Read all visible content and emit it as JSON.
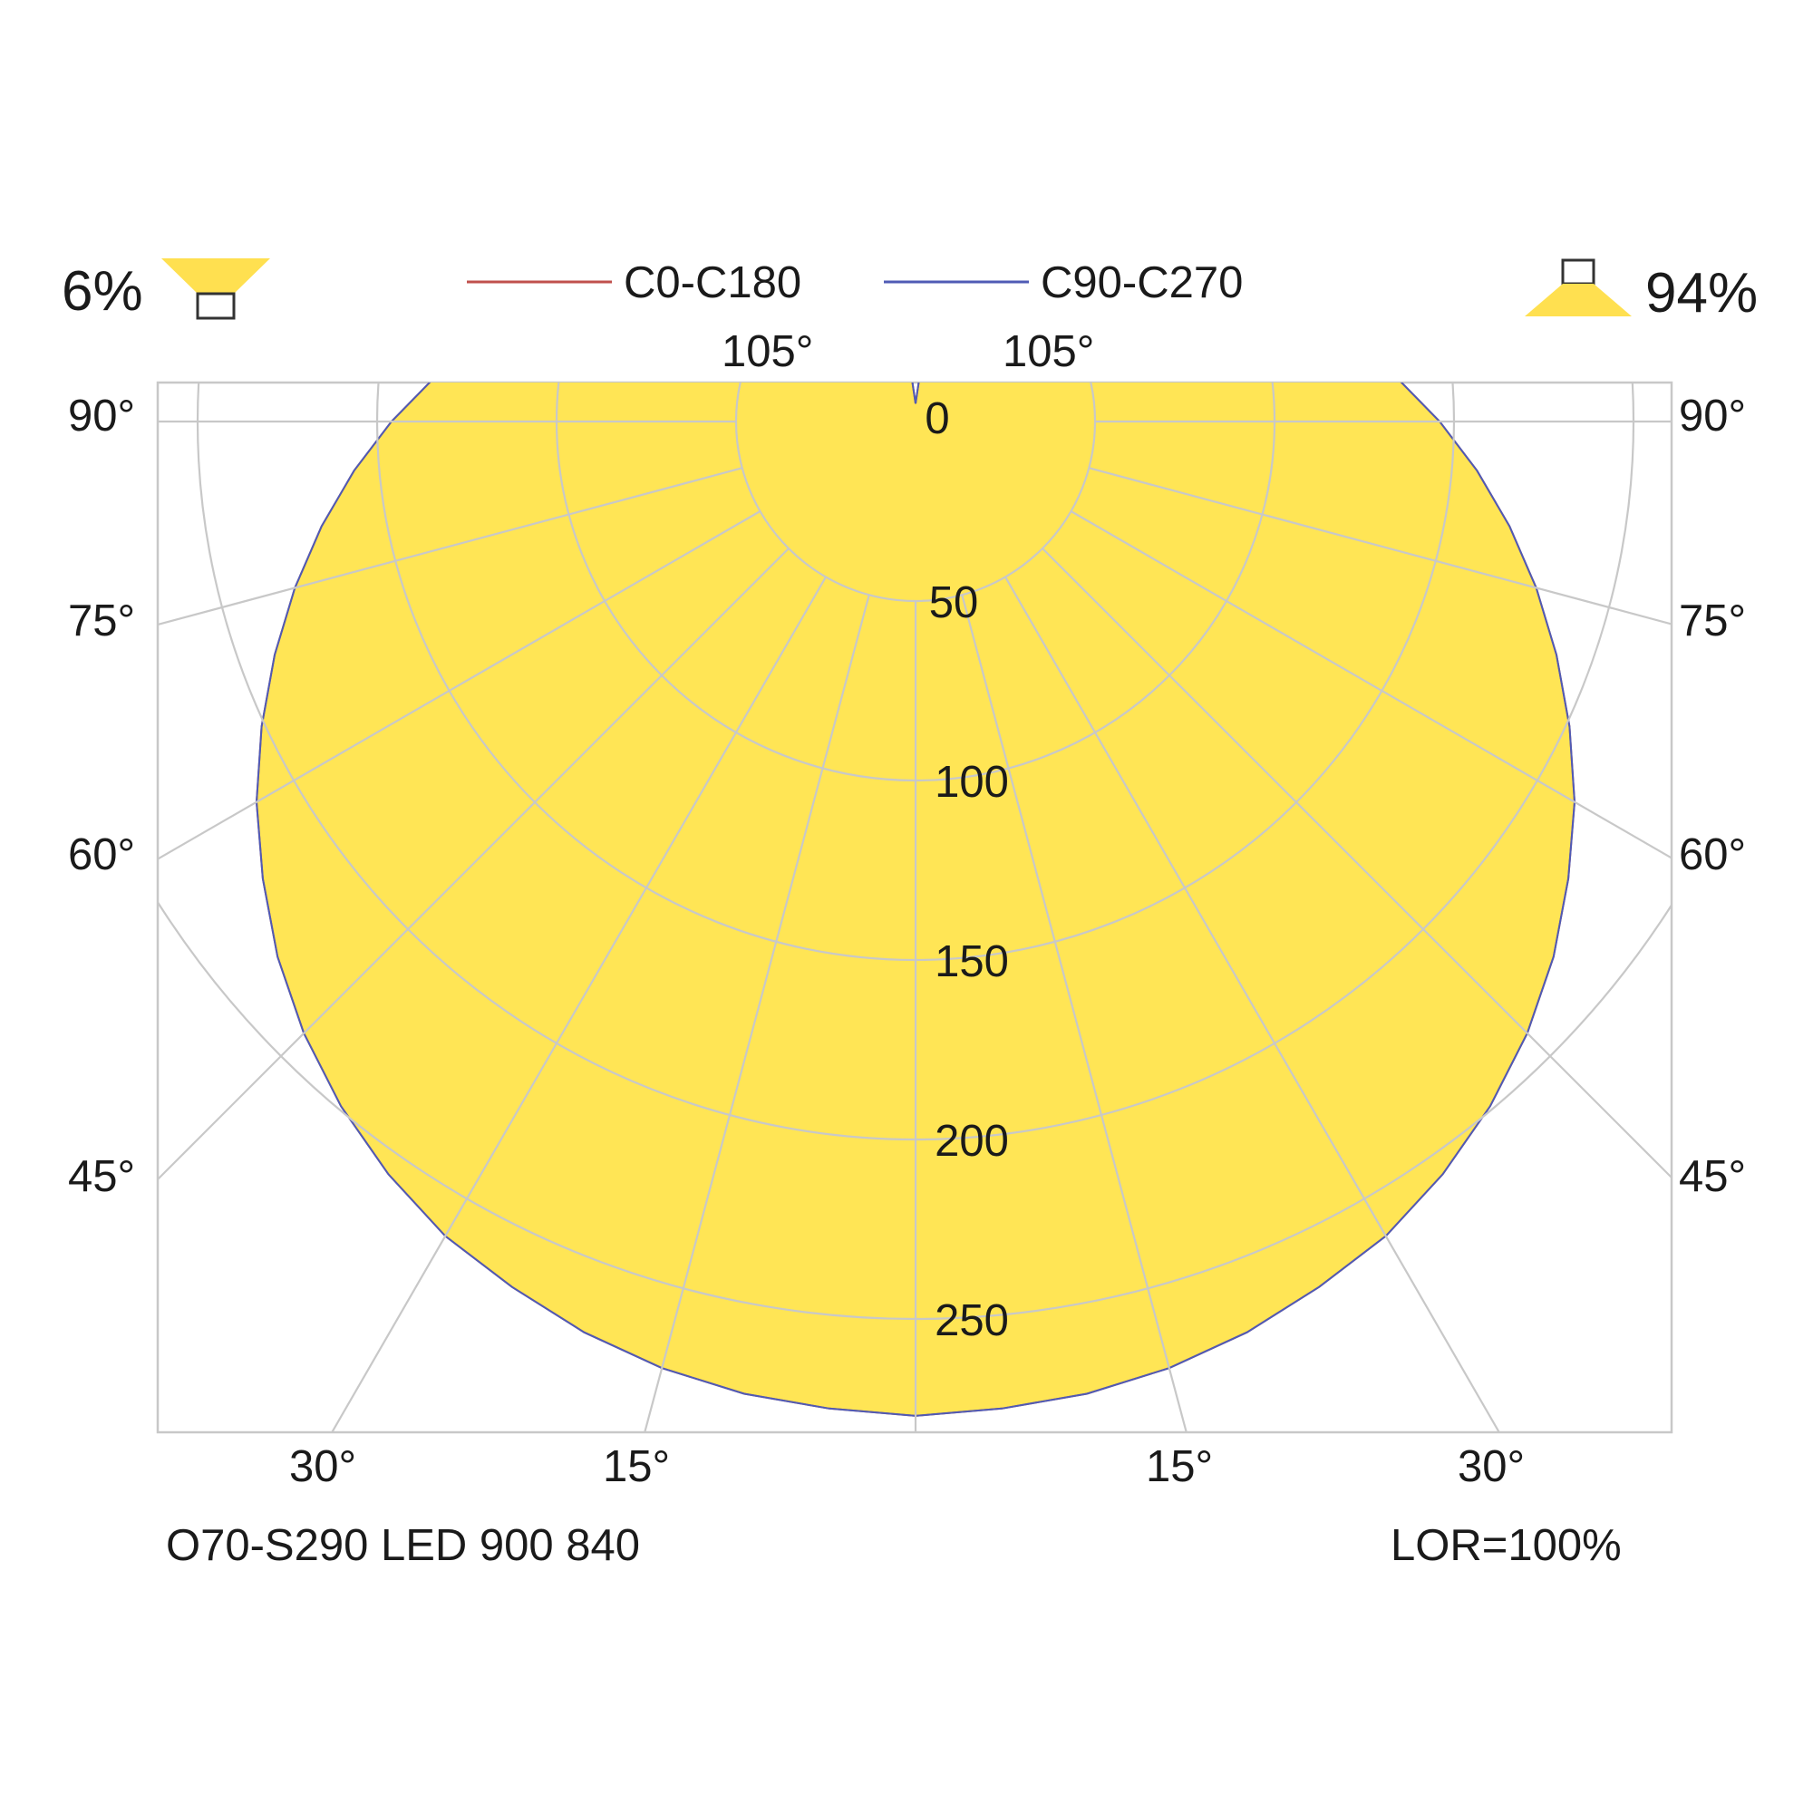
{
  "chart_data": {
    "type": "polar",
    "title": "",
    "luminaire": "O70-S290 LED 900 840",
    "lor": "LOR=100%",
    "upward_flux": "6%",
    "downward_flux": "94%",
    "legend": [
      {
        "name": "C0-C180",
        "color": "#c0504d"
      },
      {
        "name": "C90-C270",
        "color": "#4f5bb5"
      }
    ],
    "r_ticks": [
      0,
      50,
      100,
      150,
      200,
      250
    ],
    "r_tick_labels": [
      "0",
      "50",
      "100",
      "150",
      "200",
      "250"
    ],
    "radial_max": 250,
    "angle_ticks": [
      15,
      30,
      45,
      60,
      75,
      90,
      105
    ],
    "angle_labels": {
      "top_left": "105°",
      "top_right": "105°",
      "left": [
        "90°",
        "75°",
        "60°",
        "45°"
      ],
      "right": [
        "90°",
        "75°",
        "60°",
        "45°"
      ],
      "bottom_left": [
        "30°",
        "15°"
      ],
      "bottom_right": [
        "15°",
        "30°"
      ]
    },
    "grid": true,
    "units": "cd/klm",
    "series": [
      {
        "name": "C0-C180",
        "angles": [
          0,
          5,
          10,
          15,
          20,
          25,
          30,
          35,
          40,
          45,
          50,
          55,
          60,
          65,
          70,
          75,
          80,
          85,
          90,
          95,
          100,
          105,
          110,
          115,
          120,
          125,
          130,
          135,
          140,
          145,
          150,
          155,
          160,
          165,
          170,
          175,
          180
        ],
        "values": [
          277,
          276,
          275,
          273,
          270,
          266,
          262,
          256,
          249,
          241,
          232,
          222,
          212,
          201,
          190,
          179,
          168,
          157,
          146,
          135,
          125,
          115,
          105,
          96,
          87,
          79,
          72,
          65,
          58,
          52,
          46,
          40,
          35,
          28,
          20,
          12,
          5
        ]
      },
      {
        "name": "C90-C270",
        "angles": [
          0,
          5,
          10,
          15,
          20,
          25,
          30,
          35,
          40,
          45,
          50,
          55,
          60,
          65,
          70,
          75,
          80,
          85,
          90,
          95,
          100,
          105,
          110,
          115,
          120,
          125,
          130,
          135,
          140,
          145,
          150,
          155,
          160,
          165,
          170,
          175,
          180
        ],
        "values": [
          277,
          276,
          275,
          273,
          270,
          266,
          262,
          256,
          249,
          241,
          232,
          222,
          212,
          201,
          190,
          179,
          168,
          157,
          146,
          135,
          125,
          115,
          105,
          96,
          87,
          79,
          72,
          65,
          58,
          52,
          46,
          40,
          35,
          28,
          20,
          12,
          5
        ]
      }
    ]
  }
}
